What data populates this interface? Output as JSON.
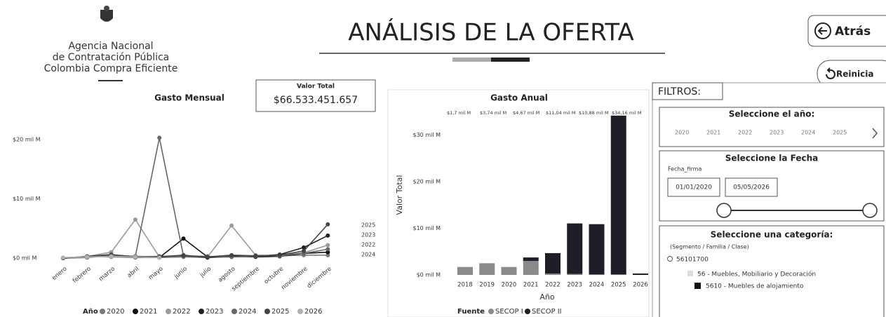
{
  "header": {
    "agency": [
      "Agencia Nacional",
      "de Contratación Pública",
      "Colombia Compra Eficiente"
    ],
    "title": "ANÁLISIS DE LA OFERTA",
    "back_button": "Atrás",
    "reset_button": "Reinicia"
  },
  "kpi": {
    "label": "Valor Total",
    "value": "$66.533.451.657"
  },
  "chart_data": [
    {
      "type": "line",
      "title": "Gasto Mensual",
      "categories": [
        "enero",
        "febrero",
        "marzo",
        "abril",
        "mayo",
        "junio",
        "julio",
        "agosto",
        "septiembre",
        "octubre",
        "noviembre",
        "diciembre"
      ],
      "legend_title": "Año",
      "series": [
        {
          "name": "2020",
          "color": "#7a7a7a",
          "values": [
            0,
            0.3,
            0.2,
            0.1,
            0.1,
            0.2,
            0.1,
            0.2,
            0.3,
            0.4,
            0.5,
            0.5
          ]
        },
        {
          "name": "2021",
          "color": "#111111",
          "values": [
            0,
            0.2,
            0.4,
            0.2,
            0.1,
            3.3,
            0.2,
            0.3,
            0.2,
            0.3,
            0.8,
            1.0
          ]
        },
        {
          "name": "2022",
          "color": "#9a9a9a",
          "values": [
            0,
            0.3,
            1.0,
            6.5,
            0.2,
            0.4,
            0.2,
            5.5,
            0.5,
            0.4,
            0.9,
            2.2
          ]
        },
        {
          "name": "2023",
          "color": "#222222",
          "values": [
            0,
            0.2,
            0.5,
            0.3,
            0.2,
            0.5,
            0.1,
            0.4,
            0.3,
            0.6,
            1.8,
            3.8
          ]
        },
        {
          "name": "2024",
          "color": "#666666",
          "values": [
            0,
            0.1,
            0.4,
            0.3,
            20.3,
            0.4,
            0.3,
            0.2,
            0.3,
            0.5,
            0.8,
            1.5
          ]
        },
        {
          "name": "2025",
          "color": "#444444",
          "values": [
            0,
            0.3,
            0.6,
            0.2,
            0.3,
            0.4,
            0.2,
            0.5,
            0.4,
            0.5,
            1.2,
            5.7
          ]
        },
        {
          "name": "2026",
          "color": "#b0b0b0",
          "values": [
            0.1,
            0.2,
            0.3,
            0.2,
            0.1,
            null,
            null,
            null,
            null,
            null,
            null,
            null
          ]
        }
      ],
      "ylim": [
        -1,
        25
      ],
      "yticks": [
        {
          "value": 0,
          "label": "$0 mil M"
        },
        {
          "value": 10,
          "label": "$10 mil M"
        },
        {
          "value": 20,
          "label": "$20 mil M"
        }
      ],
      "grid": false
    },
    {
      "type": "bar",
      "stacked": true,
      "title": "Gasto Anual",
      "x_label": "Año",
      "y_label": "Valor Total",
      "categories": [
        "2018",
        "2019",
        "2020",
        "2021",
        "2022",
        "2023",
        "2024",
        "2025",
        "2026"
      ],
      "legend_title": "Fuente",
      "series": [
        {
          "name": "SECOP I",
          "color": "#8a8a8a",
          "values": [
            1.7,
            2.5,
            1.7,
            3.0,
            0.3,
            0.2,
            0.1,
            0.1,
            0
          ]
        },
        {
          "name": "SECOP II",
          "color": "#1e1e28",
          "values": [
            0,
            0,
            0,
            0.74,
            4.37,
            10.84,
            10.78,
            34.06,
            0.3
          ]
        }
      ],
      "annotations": [
        "$1,7 mil M",
        "$3,74 mil M",
        "$4,67 mil M",
        "$11,04 mil M",
        "$10,88 mil M",
        "$34,16 mil M"
      ],
      "ylim": [
        -0.5,
        35
      ],
      "yticks": [
        {
          "value": 0,
          "label": "$0 mil M"
        },
        {
          "value": 10,
          "label": "$10 mil M"
        },
        {
          "value": 20,
          "label": "$20 mil M"
        },
        {
          "value": 30,
          "label": "$30 mil M"
        }
      ],
      "grid": false
    }
  ],
  "filters": {
    "title": "FILTROS:",
    "year": {
      "label": "Seleccione el año:",
      "options": [
        "2020",
        "2021",
        "2022",
        "2023",
        "2024",
        "2025"
      ]
    },
    "date": {
      "label": "Seleccione la Fecha",
      "field": "Fecha_firma",
      "start": "01/01/2020",
      "end": "05/05/2026"
    },
    "category": {
      "label": "Seleccione una categoría:",
      "hint": "(Segmento / Familia / Clase)",
      "search": "56101700",
      "items": [
        "56 - Muebles, Mobiliario y Decoración",
        "5610 - Muebles de alojamiento"
      ]
    }
  }
}
